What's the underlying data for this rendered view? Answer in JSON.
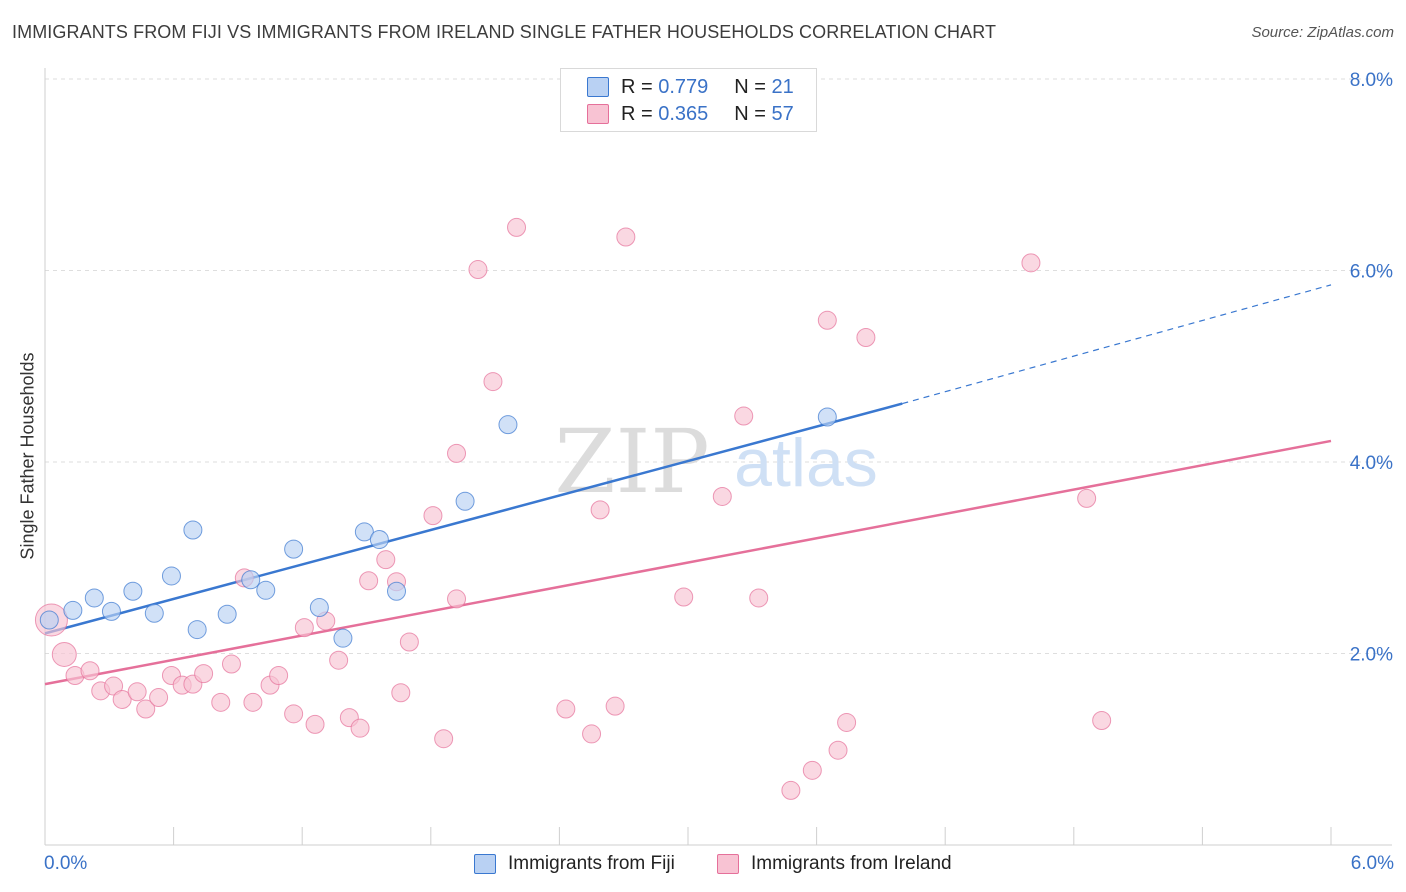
{
  "title": "IMMIGRANTS FROM FIJI VS IMMIGRANTS FROM IRELAND SINGLE FATHER HOUSEHOLDS CORRELATION CHART",
  "source": "Source: ZipAtlas.com",
  "watermark": {
    "zip": "ZIP",
    "atlas": "atlas"
  },
  "legend": {
    "fiji": {
      "r_label": "R =",
      "r_value": "0.779",
      "n_label": "N =",
      "n_value": "21"
    },
    "ireland": {
      "r_label": "R =",
      "r_value": "0.365",
      "n_label": "N =",
      "n_value": "57"
    }
  },
  "bottom_legend": {
    "fiji": "Immigrants from Fiji",
    "ireland": "Immigrants from Ireland"
  },
  "x_axis": {
    "min_label": "0.0%",
    "max_label": "6.0%"
  },
  "colors": {
    "fiji": "#3a78d0",
    "ireland": "#e5709a",
    "fiji_fill": "#b9d1f3",
    "ireland_fill": "#f8c3d3",
    "axis_text": "#3a72c7"
  },
  "chart_data": {
    "type": "scatter",
    "title": "IMMIGRANTS FROM FIJI VS IMMIGRANTS FROM IRELAND SINGLE FATHER HOUSEHOLDS CORRELATION CHART",
    "xlabel": "",
    "ylabel": "Single Father Households",
    "xlim": [
      0,
      6.0
    ],
    "ylim": [
      0,
      8.0
    ],
    "y_ticks": [
      "2.0%",
      "4.0%",
      "6.0%",
      "8.0%"
    ],
    "y_tick_values": [
      2.0,
      4.0,
      6.0,
      8.0
    ],
    "grid": true,
    "legend_position": "top-center",
    "series": [
      {
        "name": "Immigrants from Fiji",
        "color": "#3a78d0",
        "R": 0.779,
        "N": 21,
        "trend": {
          "x0": 0.0,
          "y0": 2.21,
          "x1": 4.0,
          "y1": 4.61,
          "dashed_to": {
            "x": 6.0,
            "y": 5.85
          }
        },
        "points": [
          [
            0.02,
            2.35
          ],
          [
            0.13,
            2.45
          ],
          [
            0.23,
            2.58
          ],
          [
            0.31,
            2.44
          ],
          [
            0.41,
            2.65
          ],
          [
            0.51,
            2.42
          ],
          [
            0.59,
            2.81
          ],
          [
            0.69,
            3.29
          ],
          [
            0.71,
            2.25
          ],
          [
            0.85,
            2.41
          ],
          [
            0.96,
            2.77
          ],
          [
            1.03,
            2.66
          ],
          [
            1.16,
            3.09
          ],
          [
            1.28,
            2.48
          ],
          [
            1.39,
            2.16
          ],
          [
            1.49,
            3.27
          ],
          [
            1.56,
            3.19
          ],
          [
            1.64,
            2.65
          ],
          [
            1.96,
            3.59
          ],
          [
            2.16,
            4.39
          ],
          [
            3.65,
            4.47
          ]
        ]
      },
      {
        "name": "Immigrants from Ireland",
        "color": "#e5709a",
        "R": 0.365,
        "N": 57,
        "trend": {
          "x0": 0.0,
          "y0": 1.68,
          "x1": 6.0,
          "y1": 4.22
        },
        "points": [
          [
            0.03,
            2.35
          ],
          [
            0.09,
            1.99
          ],
          [
            0.14,
            1.77
          ],
          [
            0.21,
            1.82
          ],
          [
            0.26,
            1.61
          ],
          [
            0.32,
            1.66
          ],
          [
            0.36,
            1.52
          ],
          [
            0.43,
            1.6
          ],
          [
            0.47,
            1.42
          ],
          [
            0.53,
            1.54
          ],
          [
            0.59,
            1.77
          ],
          [
            0.64,
            1.67
          ],
          [
            0.69,
            1.68
          ],
          [
            0.74,
            1.79
          ],
          [
            0.82,
            1.49
          ],
          [
            0.87,
            1.89
          ],
          [
            0.93,
            2.79
          ],
          [
            0.97,
            1.49
          ],
          [
            1.05,
            1.67
          ],
          [
            1.09,
            1.77
          ],
          [
            1.16,
            1.37
          ],
          [
            1.21,
            2.27
          ],
          [
            1.26,
            1.26
          ],
          [
            1.31,
            2.34
          ],
          [
            1.37,
            1.93
          ],
          [
            1.42,
            1.33
          ],
          [
            1.47,
            1.22
          ],
          [
            1.51,
            2.76
          ],
          [
            1.59,
            2.98
          ],
          [
            1.64,
            2.75
          ],
          [
            1.66,
            1.59
          ],
          [
            1.7,
            2.12
          ],
          [
            1.81,
            3.44
          ],
          [
            1.86,
            1.11
          ],
          [
            1.92,
            2.57
          ],
          [
            1.92,
            4.09
          ],
          [
            2.02,
            6.01
          ],
          [
            2.09,
            4.84
          ],
          [
            2.2,
            6.45
          ],
          [
            2.43,
            1.42
          ],
          [
            2.55,
            1.16
          ],
          [
            2.59,
            3.5
          ],
          [
            2.66,
            1.45
          ],
          [
            2.71,
            6.35
          ],
          [
            2.98,
            2.59
          ],
          [
            3.16,
            3.64
          ],
          [
            3.26,
            4.48
          ],
          [
            3.33,
            2.58
          ],
          [
            3.48,
            0.57
          ],
          [
            3.58,
            0.78
          ],
          [
            3.65,
            5.48
          ],
          [
            3.7,
            0.99
          ],
          [
            3.74,
            1.28
          ],
          [
            3.83,
            5.3
          ],
          [
            4.6,
            6.08
          ],
          [
            4.86,
            3.62
          ],
          [
            4.93,
            1.3
          ]
        ]
      }
    ]
  }
}
